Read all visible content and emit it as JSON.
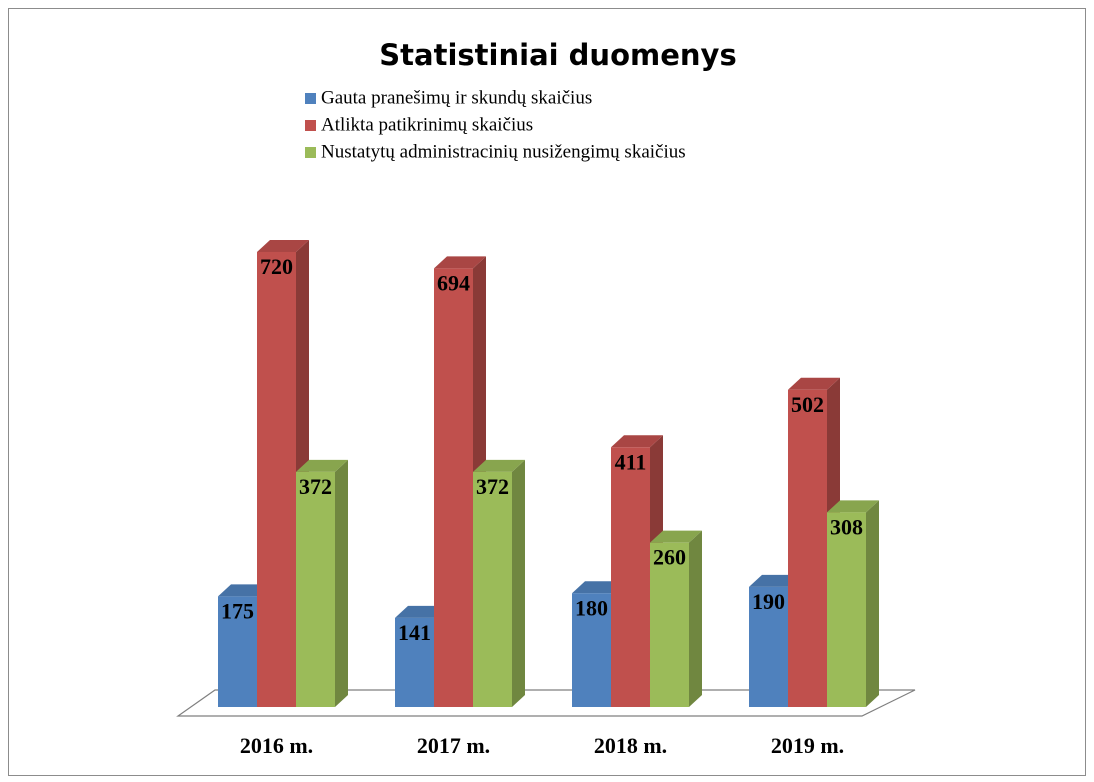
{
  "chart_data": {
    "type": "bar3d",
    "title": "Statistiniai duomenys",
    "categories": [
      "2016 m.",
      "2017 m.",
      "2018 m.",
      "2019 m."
    ],
    "series": [
      {
        "name": "Gauta pranešimų ir skundų skaičius",
        "color": "#4f81bd",
        "values": [
          175,
          141,
          180,
          190
        ]
      },
      {
        "name": "Atlikta patikrinimų skaičius",
        "color": "#c0504d",
        "values": [
          720,
          694,
          411,
          502
        ]
      },
      {
        "name": "Nustatytų administracinių nusižengimų skaičius",
        "color": "#9bbb59",
        "values": [
          372,
          372,
          260,
          308
        ]
      }
    ]
  }
}
